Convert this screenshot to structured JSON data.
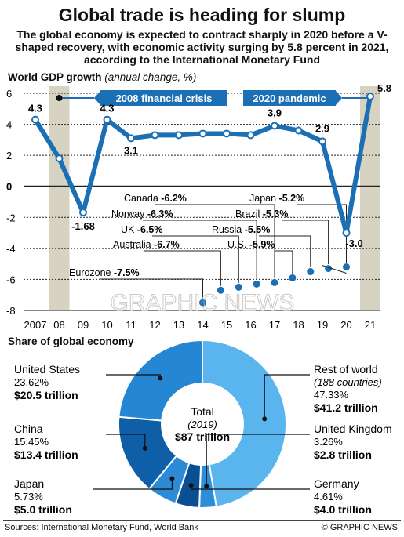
{
  "title": "Global trade is heading for slump",
  "subtitle": "The global economy is expected to contract sharply in 2020 before a V-shaped recovery, with economic activity surging by 5.8 percent in 2021, according to the International Monetary Fund",
  "colors": {
    "line": "#1a6fb5",
    "band": "#d6d3c2",
    "grid": "#222222",
    "recession_dot": "#a7c8e8"
  },
  "chart_data": [
    {
      "type": "line",
      "title": "World GDP growth",
      "unit": "(annual change, %)",
      "x": [
        "2007",
        "08",
        "09",
        "10",
        "11",
        "12",
        "13",
        "14",
        "15",
        "16",
        "17",
        "18",
        "19",
        "20",
        "21"
      ],
      "series": [
        {
          "values": [
            4.3,
            1.8,
            -1.68,
            4.3,
            3.1,
            3.3,
            3.3,
            3.4,
            3.4,
            3.3,
            3.9,
            3.6,
            2.9,
            -3.0,
            5.8
          ]
        }
      ],
      "ylim": [
        -8,
        6
      ],
      "yticks": [
        "6",
        "4",
        "2",
        "0",
        "-2",
        "-4",
        "-6",
        "-8"
      ],
      "data_labels": [
        {
          "i": 0,
          "text": "4.3"
        },
        {
          "i": 2,
          "text": "-1.68"
        },
        {
          "i": 3,
          "text": "4.3"
        },
        {
          "i": 4,
          "text": "3.1"
        },
        {
          "i": 10,
          "text": "3.9"
        },
        {
          "i": 12,
          "text": "2.9"
        },
        {
          "i": 13,
          "text": "-3.0"
        },
        {
          "i": 14,
          "text": "5.8"
        }
      ],
      "bands": [
        {
          "label": "2008 financial crisis",
          "x": "08"
        },
        {
          "label": "2020 pandemic",
          "x": "21"
        }
      ],
      "forecast_2020": [
        {
          "name": "Eurozone",
          "value": "-7.5%",
          "v": -7.5
        },
        {
          "name": "Australia",
          "value": "-6.7%",
          "v": -6.7
        },
        {
          "name": "UK",
          "value": "-6.5%",
          "v": -6.5
        },
        {
          "name": "Norway",
          "value": "-6.3%",
          "v": -6.3
        },
        {
          "name": "Canada",
          "value": "-6.2%",
          "v": -6.2
        },
        {
          "name": "U.S.",
          "value": "-5.9%",
          "v": -5.9
        },
        {
          "name": "Russia",
          "value": "-5.5%",
          "v": -5.5
        },
        {
          "name": "Brazil",
          "value": "-5.3%",
          "v": -5.3
        },
        {
          "name": "Japan",
          "value": "-5.2%",
          "v": -5.2
        }
      ],
      "grid": true
    },
    {
      "type": "pie",
      "title": "Share of global economy",
      "center_label": "Total",
      "center_year": "(2019)",
      "center_value": "$87 trillion",
      "slices": [
        {
          "name": "Rest of world",
          "note": "(188 countries)",
          "pct": "47.33%",
          "value": "$41.2 trillion",
          "v": 47.33,
          "color": "#5ab4ee"
        },
        {
          "name": "United Kingdom",
          "pct": "3.26%",
          "value": "$2.8 trillion",
          "v": 3.26,
          "color": "#2b8fd8"
        },
        {
          "name": "Germany",
          "pct": "4.61%",
          "value": "$4.0 trillion",
          "v": 4.61,
          "color": "#0a4e94"
        },
        {
          "name": "Japan",
          "pct": "5.73%",
          "value": "$5.0 trillion",
          "v": 5.73,
          "color": "#2d8ad6"
        },
        {
          "name": "China",
          "pct": "15.45%",
          "value": "$13.4 trillion",
          "v": 15.45,
          "color": "#0f5ea8"
        },
        {
          "name": "United States",
          "pct": "23.62%",
          "value": "$20.5 trillion",
          "v": 23.62,
          "color": "#2586d4"
        }
      ]
    }
  ],
  "sources": "Sources: International Monetary Fund, World Bank",
  "credit": "© GRAPHIC NEWS",
  "watermark": "GRAPHIC NEWS"
}
